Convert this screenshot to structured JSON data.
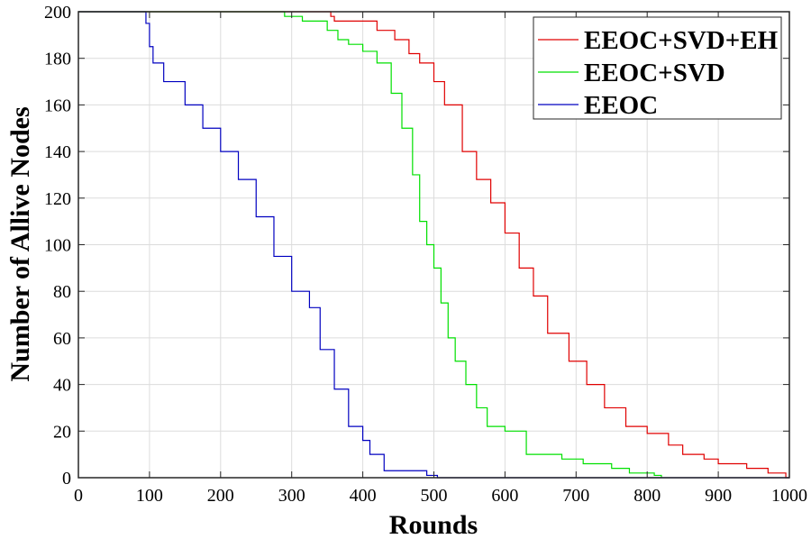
{
  "chart_data": {
    "type": "line",
    "title": "",
    "xlabel": "Rounds",
    "ylabel": "Number of Allive Nodes",
    "xlim": [
      0,
      1000
    ],
    "ylim": [
      0,
      200
    ],
    "xticks": [
      0,
      100,
      200,
      300,
      400,
      500,
      600,
      700,
      800,
      900,
      1000
    ],
    "yticks": [
      0,
      20,
      40,
      60,
      80,
      100,
      120,
      140,
      160,
      180,
      200
    ],
    "grid": true,
    "legend_position": "top-right",
    "series": [
      {
        "name": "EEOC+SVD+EH",
        "color": "#e00000",
        "x": [
          0,
          340,
          355,
          360,
          400,
          420,
          445,
          465,
          480,
          500,
          515,
          540,
          560,
          580,
          600,
          620,
          640,
          660,
          690,
          715,
          740,
          770,
          800,
          830,
          850,
          880,
          900,
          940,
          970,
          995,
          1000
        ],
        "y": [
          200,
          200,
          198,
          196,
          196,
          192,
          188,
          182,
          178,
          170,
          160,
          140,
          128,
          118,
          105,
          90,
          78,
          62,
          50,
          40,
          30,
          22,
          19,
          14,
          10,
          8,
          6,
          4,
          2,
          0,
          0
        ]
      },
      {
        "name": "EEOC+SVD",
        "color": "#00e000",
        "x": [
          0,
          265,
          290,
          315,
          350,
          365,
          380,
          400,
          420,
          440,
          455,
          470,
          480,
          490,
          500,
          510,
          520,
          530,
          545,
          560,
          575,
          600,
          630,
          680,
          710,
          750,
          775,
          810,
          820
        ],
        "y": [
          200,
          200,
          198,
          196,
          192,
          188,
          186,
          183,
          178,
          165,
          150,
          130,
          110,
          100,
          90,
          75,
          60,
          50,
          40,
          30,
          22,
          20,
          10,
          8,
          6,
          4,
          2,
          1,
          0
        ]
      },
      {
        "name": "EEOC",
        "color": "#0000c0",
        "x": [
          0,
          88,
          95,
          100,
          105,
          120,
          150,
          175,
          200,
          225,
          250,
          275,
          300,
          325,
          340,
          360,
          380,
          400,
          410,
          430,
          485,
          490,
          505,
          1000
        ],
        "y": [
          200,
          200,
          195,
          185,
          178,
          170,
          160,
          150,
          140,
          128,
          112,
          95,
          80,
          73,
          55,
          38,
          22,
          16,
          10,
          3,
          3,
          1,
          0,
          0
        ]
      }
    ]
  }
}
